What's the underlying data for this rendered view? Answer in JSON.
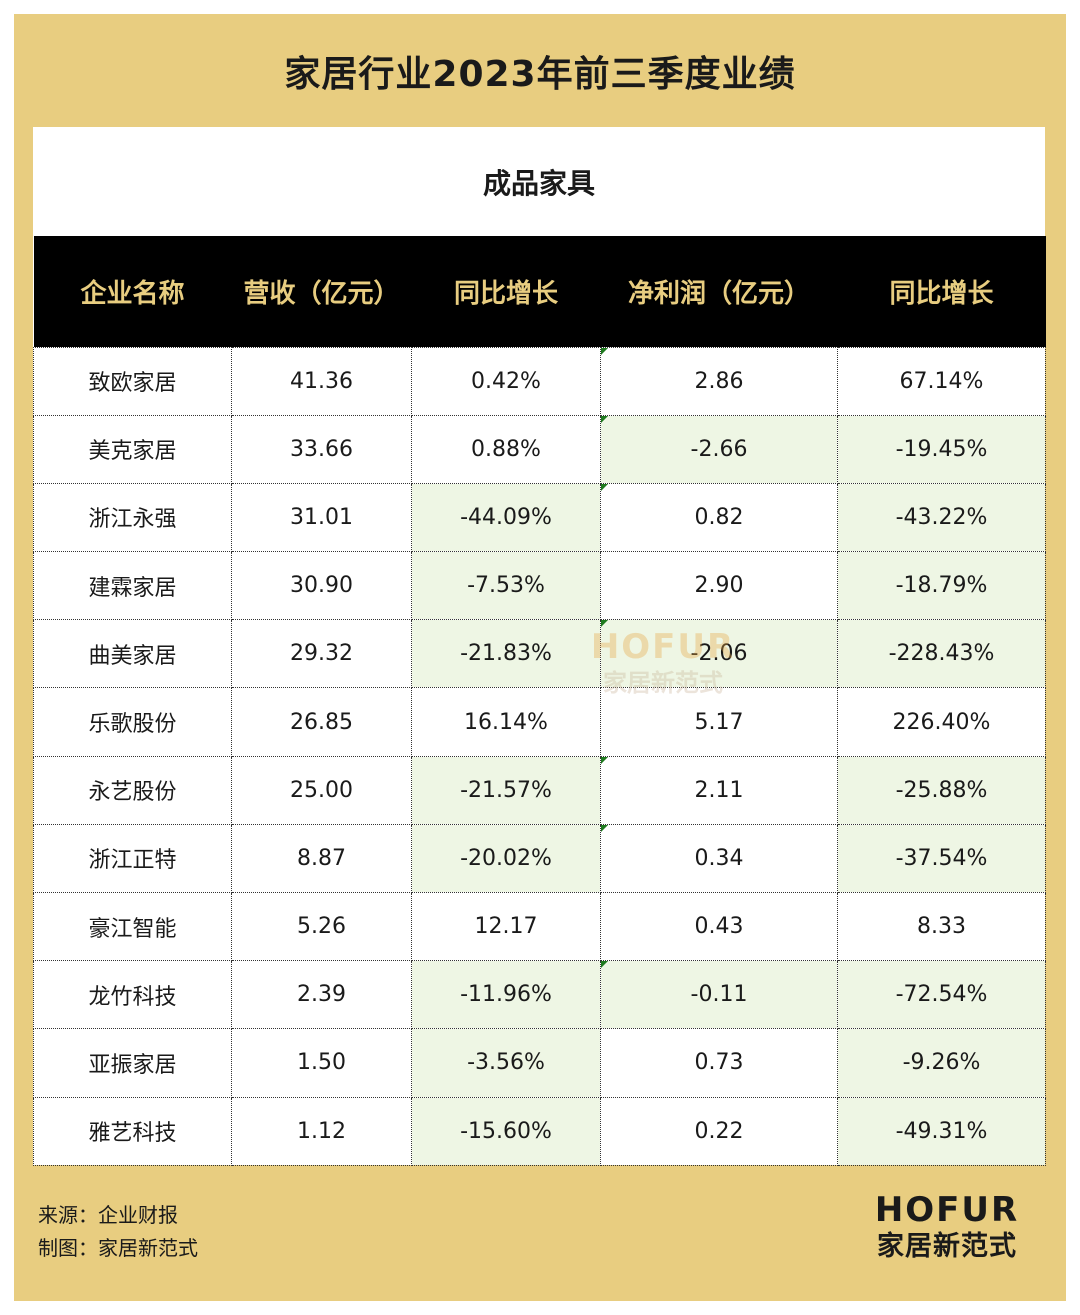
{
  "title": "家居行业2023年前三季度业绩",
  "subtitle": "成品家具",
  "table": {
    "headers": [
      "企业名称",
      "营收（亿元）",
      "同比增长",
      "净利润（亿元）",
      "同比增长"
    ],
    "rows": [
      {
        "cells": [
          "致欧家居",
          "41.36",
          "0.42%",
          "2.86",
          "67.14%"
        ],
        "neg": [
          false,
          false,
          false,
          false,
          false
        ],
        "flag": true
      },
      {
        "cells": [
          "美克家居",
          "33.66",
          "0.88%",
          "-2.66",
          "-19.45%"
        ],
        "neg": [
          false,
          false,
          false,
          true,
          true
        ],
        "flag": true
      },
      {
        "cells": [
          "浙江永强",
          "31.01",
          "-44.09%",
          "0.82",
          "-43.22%"
        ],
        "neg": [
          false,
          false,
          true,
          false,
          true
        ],
        "flag": true
      },
      {
        "cells": [
          "建霖家居",
          "30.90",
          "-7.53%",
          "2.90",
          "-18.79%"
        ],
        "neg": [
          false,
          false,
          true,
          false,
          true
        ],
        "flag": false
      },
      {
        "cells": [
          "曲美家居",
          "29.32",
          "-21.83%",
          "-2.06",
          "-228.43%"
        ],
        "neg": [
          false,
          false,
          true,
          true,
          true
        ],
        "flag": true
      },
      {
        "cells": [
          "乐歌股份",
          "26.85",
          "16.14%",
          "5.17",
          "226.40%"
        ],
        "neg": [
          false,
          false,
          false,
          false,
          false
        ],
        "flag": false
      },
      {
        "cells": [
          "永艺股份",
          "25.00",
          "-21.57%",
          "2.11",
          "-25.88%"
        ],
        "neg": [
          false,
          false,
          true,
          false,
          true
        ],
        "flag": true
      },
      {
        "cells": [
          "浙江正特",
          "8.87",
          "-20.02%",
          "0.34",
          "-37.54%"
        ],
        "neg": [
          false,
          false,
          true,
          false,
          true
        ],
        "flag": true
      },
      {
        "cells": [
          "豪江智能",
          "5.26",
          "12.17",
          "0.43",
          "8.33"
        ],
        "neg": [
          false,
          false,
          false,
          false,
          false
        ],
        "flag": false
      },
      {
        "cells": [
          "龙竹科技",
          "2.39",
          "-11.96%",
          "-0.11",
          "-72.54%"
        ],
        "neg": [
          false,
          false,
          true,
          true,
          true
        ],
        "flag": true
      },
      {
        "cells": [
          "亚振家居",
          "1.50",
          "-3.56%",
          "0.73",
          "-9.26%"
        ],
        "neg": [
          false,
          false,
          true,
          false,
          true
        ],
        "flag": false
      },
      {
        "cells": [
          "雅艺科技",
          "1.12",
          "-15.60%",
          "0.22",
          "-49.31%"
        ],
        "neg": [
          false,
          false,
          true,
          false,
          true
        ],
        "flag": false
      }
    ]
  },
  "watermark": {
    "line1": "HOFUR",
    "line2": "家居新范式"
  },
  "footer": {
    "source": "来源：企业财报",
    "maker": "制图：家居新范式"
  },
  "brand": {
    "line1": "HOFUR",
    "line2": "家居新范式"
  },
  "colors": {
    "gold": "#e8cd80",
    "header_bg": "#000000",
    "negative_fill": "#eef6e4",
    "flag_green": "#1f7a1f"
  }
}
